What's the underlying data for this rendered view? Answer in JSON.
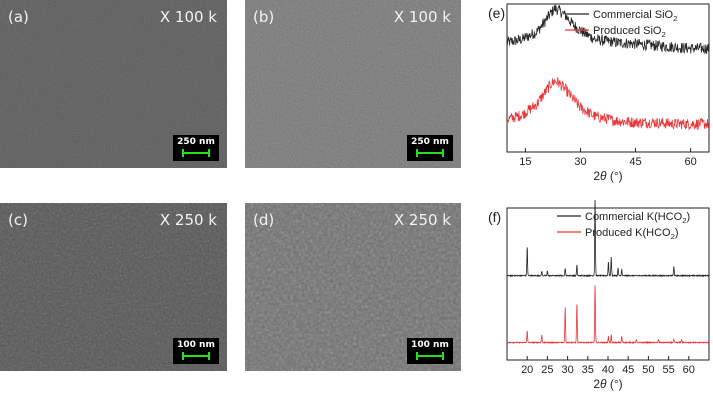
{
  "sem_panels": [
    {
      "label": "(a)",
      "magnification": "X 100 k",
      "scale": "250 nm",
      "tone": "#5a5a5a"
    },
    {
      "label": "(b)",
      "magnification": "X 100 k",
      "scale": "250 nm",
      "tone": "#777777"
    },
    {
      "label": "(c)",
      "magnification": "X 250 k",
      "scale": "100 nm",
      "tone": "#555555"
    },
    {
      "label": "(d)",
      "magnification": "X 250 k",
      "scale": "100 nm",
      "tone": "#6d6d6d"
    }
  ],
  "chart_data": [
    {
      "type": "line",
      "panel_label": "(e)",
      "xlabel_parts": {
        "pre": "2",
        "italic": "θ",
        "post": " (°)"
      },
      "xlim": [
        10,
        65
      ],
      "xticks": [
        15,
        30,
        45,
        60
      ],
      "y_ticks_shown": false,
      "legend_position": "top-right",
      "series": [
        {
          "name_parts": {
            "pre": "Commercial SiO",
            "sub": "2"
          },
          "color": "#262626",
          "x": [
            10,
            14,
            18,
            20,
            22,
            23,
            24,
            26,
            28,
            30,
            34,
            40,
            45,
            50,
            55,
            60,
            65
          ],
          "y": [
            0.74,
            0.76,
            0.81,
            0.87,
            0.94,
            0.97,
            0.96,
            0.92,
            0.86,
            0.82,
            0.76,
            0.74,
            0.73,
            0.72,
            0.71,
            0.7,
            0.7
          ]
        },
        {
          "name_parts": {
            "pre": "Produced SiO",
            "sub": "2"
          },
          "color": "#e8383b",
          "x": [
            10,
            14,
            18,
            20,
            22,
            23,
            24,
            26,
            28,
            30,
            34,
            40,
            45,
            50,
            55,
            60,
            65
          ],
          "y": [
            0.22,
            0.25,
            0.32,
            0.39,
            0.46,
            0.48,
            0.47,
            0.42,
            0.36,
            0.3,
            0.24,
            0.21,
            0.2,
            0.2,
            0.19,
            0.19,
            0.19
          ]
        }
      ]
    },
    {
      "type": "line",
      "panel_label": "(f)",
      "xlabel_parts": {
        "pre": "2",
        "italic": "θ",
        "post": " (°)"
      },
      "xlim": [
        15,
        65
      ],
      "xticks": [
        20,
        25,
        30,
        35,
        40,
        45,
        50,
        55,
        60
      ],
      "y_ticks_shown": false,
      "legend_position": "top-right",
      "series": [
        {
          "name_parts": {
            "pre": "Commercial K(HCO",
            "sub": "2",
            "post": ")"
          },
          "color": "#262626",
          "baseline": 0.555,
          "peaks": [
            [
              20.0,
              0.19
            ],
            [
              23.6,
              0.03
            ],
            [
              25.0,
              0.03
            ],
            [
              29.4,
              0.05
            ],
            [
              32.3,
              0.07
            ],
            [
              36.8,
              0.52
            ],
            [
              40.1,
              0.09
            ],
            [
              40.8,
              0.12
            ],
            [
              42.5,
              0.05
            ],
            [
              43.4,
              0.04
            ],
            [
              56.3,
              0.06
            ]
          ]
        },
        {
          "name_parts": {
            "pre": "Produced K(HCO",
            "sub": "2",
            "post": ")"
          },
          "color": "#e8383b",
          "baseline": 0.115,
          "peaks": [
            [
              20.0,
              0.08
            ],
            [
              23.6,
              0.05
            ],
            [
              29.4,
              0.23
            ],
            [
              32.3,
              0.26
            ],
            [
              36.8,
              0.39
            ],
            [
              40.1,
              0.04
            ],
            [
              40.8,
              0.05
            ],
            [
              43.4,
              0.04
            ],
            [
              47.0,
              0.02
            ],
            [
              52.5,
              0.02
            ],
            [
              56.3,
              0.02
            ],
            [
              58.2,
              0.02
            ]
          ]
        }
      ]
    }
  ]
}
